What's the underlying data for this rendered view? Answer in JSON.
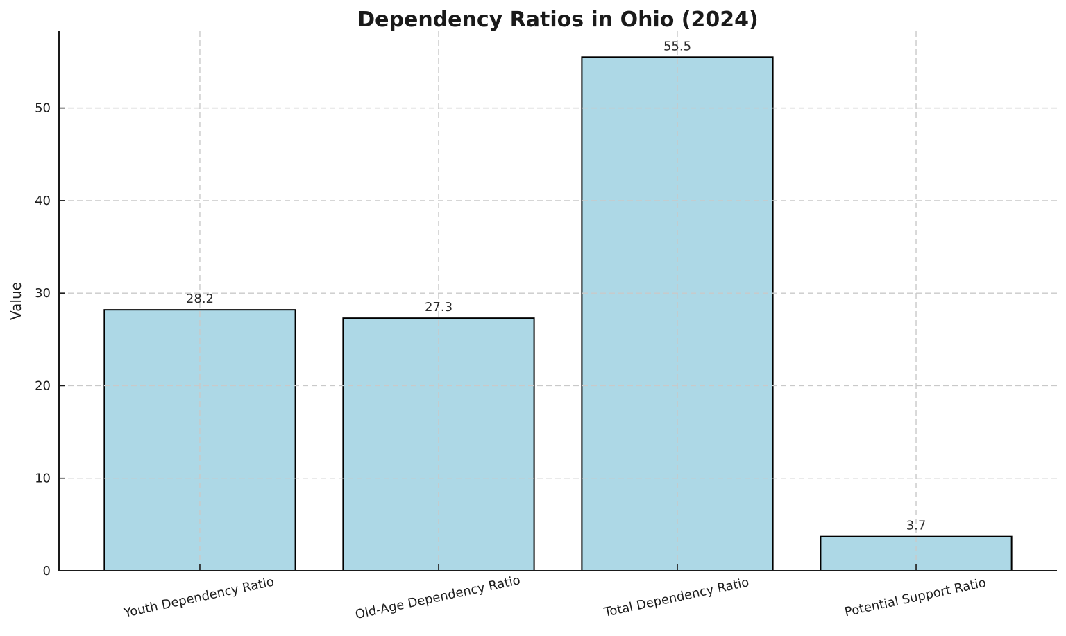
{
  "chart_data": {
    "type": "bar",
    "title": "Dependency Ratios in Ohio (2024)",
    "xlabel": "",
    "ylabel": "Value",
    "categories": [
      "Youth Dependency Ratio",
      "Old-Age Dependency Ratio",
      "Total Dependency Ratio",
      "Potential Support Ratio"
    ],
    "values": [
      28.2,
      27.3,
      55.5,
      3.7
    ],
    "value_labels": [
      "28.2",
      "27.3",
      "55.5",
      "3.7"
    ],
    "yticks": [
      0,
      10,
      20,
      30,
      40,
      50
    ],
    "ylim": [
      0,
      58.3
    ],
    "grid": "dashed horizontal and vertical gridlines, drawn above bars",
    "legend_position": "none",
    "colors": {
      "bar_fill": "#ADD8E6",
      "bar_edge": "#000000",
      "grid": "#c9c9c9",
      "spine": "#1a1a1a",
      "text": "#1c1c1c",
      "background": "#ffffff"
    }
  }
}
